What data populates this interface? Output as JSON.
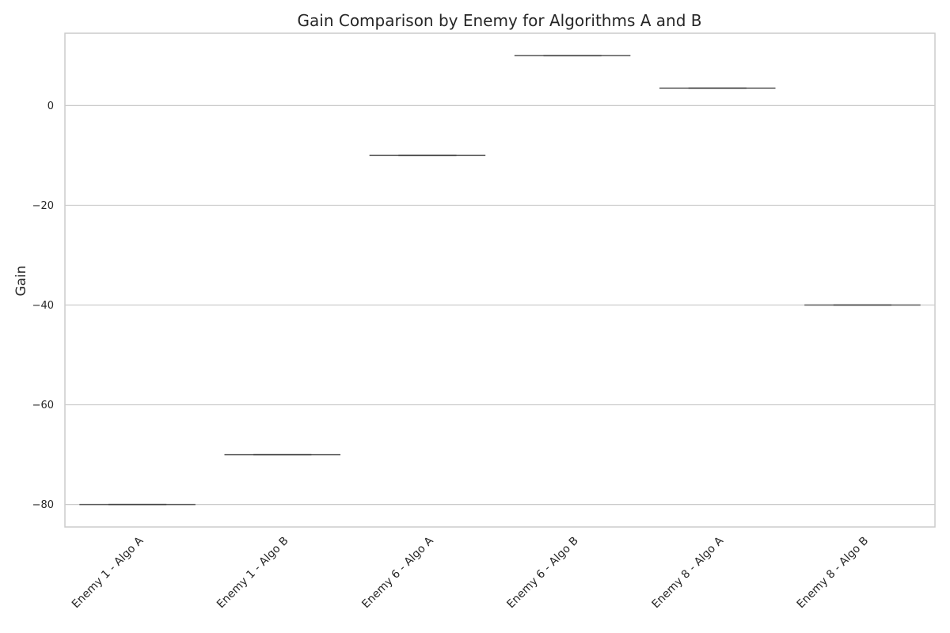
{
  "chart_data": {
    "type": "box",
    "title": "Gain Comparison by Enemy for Algorithms A and B",
    "xlabel": "",
    "ylabel": "Gain",
    "categories": [
      "Enemy 1 - Algo A",
      "Enemy 1 - Algo B",
      "Enemy 6 - Algo A",
      "Enemy 6 - Algo B",
      "Enemy 8 - Algo A",
      "Enemy 8 - Algo B"
    ],
    "values": [
      -80,
      -70,
      -10,
      10,
      3.5,
      -40
    ],
    "ylim": [
      -84.5,
      14.5
    ],
    "yticks": [
      0,
      -20,
      -40,
      -60,
      -80
    ],
    "ytick_labels": [
      "0",
      "−20",
      "−40",
      "−60",
      "−80"
    ],
    "grid": "y",
    "legend": "none",
    "colors": {
      "grid": "#cccccc",
      "frame": "#cccccc",
      "mark": "#5a5a5a",
      "text": "#262626"
    }
  }
}
